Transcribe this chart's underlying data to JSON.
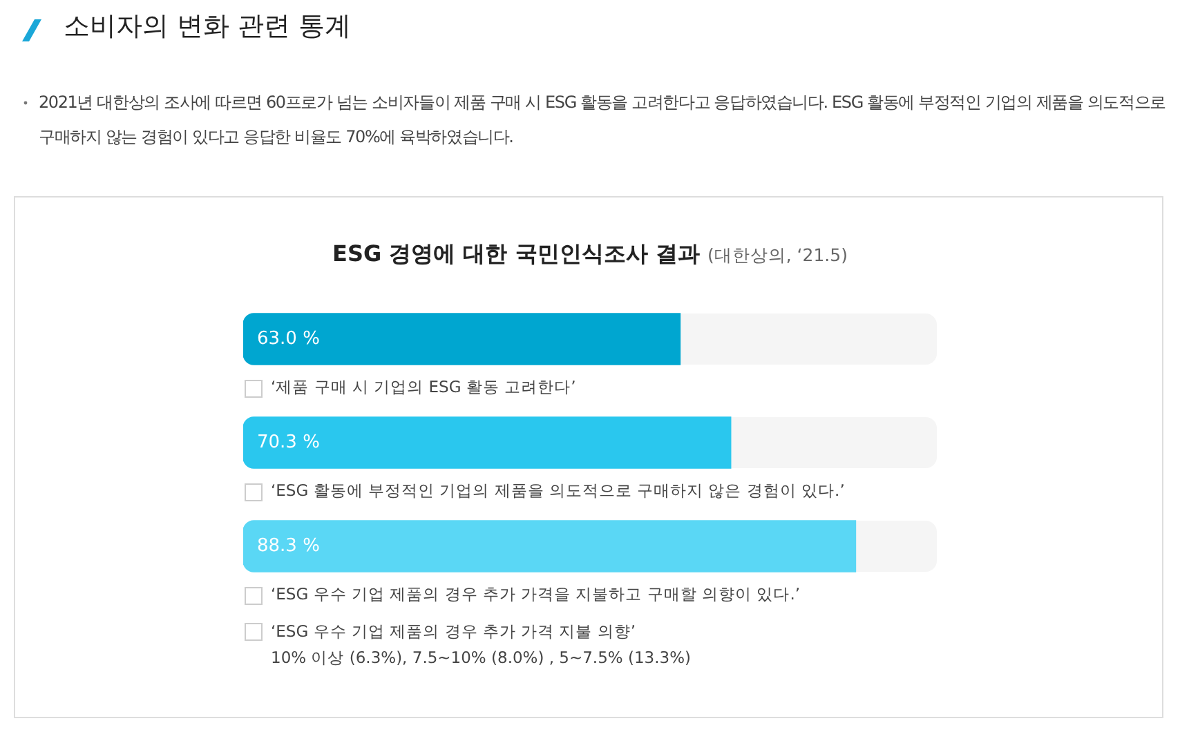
{
  "chart_data": {
    "type": "bar",
    "orientation": "horizontal",
    "title": "ESG 경영에 대한 국민인식조사 결과",
    "subtitle": "(대한상의, ‘21.5)",
    "categories": [
      "‘제품 구매 시 기업의 ESG 활동 고려한다’",
      "‘ESG 활동에 부정적인 기업의 제품을 의도적으로 구매하지 않은 경험이 있다.’",
      "‘ESG 우수 기업 제품의 경우 추가 가격을 지불하고 구매할 의향이 있다.’"
    ],
    "values": [
      63.0,
      70.3,
      88.3
    ],
    "colors": [
      "#00a6d0",
      "#2ac7ee",
      "#5ad7f5"
    ],
    "value_labels": [
      "63.0 %",
      "70.3 %",
      "88.3 %"
    ],
    "xlim": [
      0,
      100
    ],
    "tick_labels": false,
    "legend": false,
    "annotations": [
      "소비자의 변화 관련 통계",
      "2021년 대한상의 조사에 따르면 60프로가 넘는 소비자들이 제품 구매 시 ESG 활동을 고려한다고 응답하였습니다. ESG 활동에 부정적인 기업의 제품을 의도적으로 구매하지 않는 경험이 있다고 응답한 비율도 70%에 육박하였습니다.",
      "‘ESG 우수 기업 제품의 경우 추가 가격 지불 의향’",
      "10% 이상 (6.3%), 7.5~10% (8.0%) , 5~7.5% (13.3%)"
    ]
  }
}
